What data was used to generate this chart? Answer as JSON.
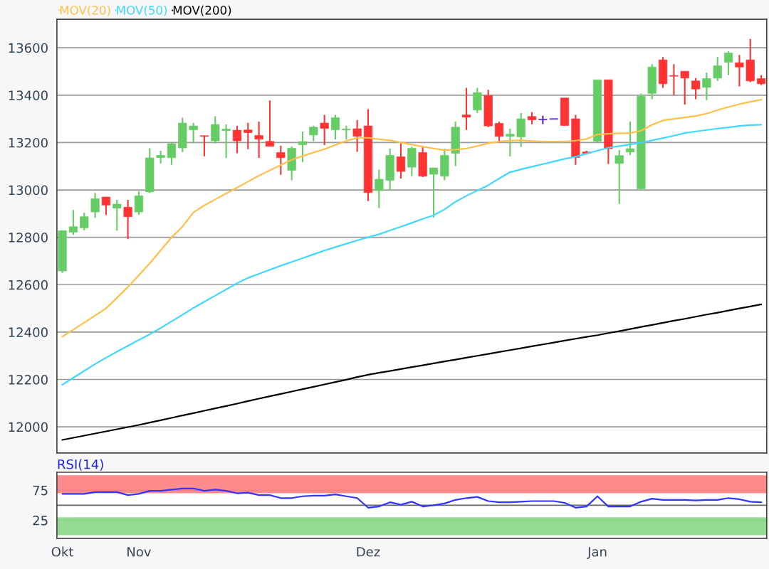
{
  "chart_data": [
    {
      "type": "candlestick",
      "tick_labels": "y",
      "grid": "y",
      "legend": "top left",
      "ylim": [
        11890,
        13720
      ],
      "yticks": [
        12000,
        12200,
        12400,
        12600,
        12800,
        13000,
        13200,
        13400,
        13600
      ],
      "categories": [
        null,
        null,
        null,
        null,
        null,
        null,
        null,
        null,
        null,
        null,
        null,
        null,
        null,
        null,
        null,
        null,
        null,
        null,
        null,
        null,
        null,
        null,
        null,
        null,
        null,
        null,
        null,
        null,
        null,
        null,
        null,
        null,
        null,
        null,
        null,
        null,
        null,
        null,
        null,
        null,
        null,
        null,
        null,
        null,
        null,
        null,
        null,
        null,
        null,
        null,
        null,
        null,
        null,
        null,
        null,
        null,
        null,
        null,
        null,
        null,
        null,
        null,
        null,
        null,
        null
      ],
      "ohlc": [
        [
          12658,
          12830,
          12650,
          12828
        ],
        [
          12822,
          12915,
          12810,
          12845
        ],
        [
          12840,
          12904,
          12830,
          12887
        ],
        [
          12907,
          12987,
          12882,
          12963
        ],
        [
          12970,
          12970,
          12894,
          12936
        ],
        [
          12923,
          12958,
          12828,
          12940
        ],
        [
          12927,
          12958,
          12792,
          12887
        ],
        [
          12907,
          12994,
          12894,
          12975
        ],
        [
          12992,
          13176,
          12987,
          13135
        ],
        [
          13137,
          13165,
          13112,
          13146
        ],
        [
          13136,
          13200,
          13106,
          13195
        ],
        [
          13177,
          13305,
          13160,
          13282
        ],
        [
          13254,
          13283,
          13197,
          13270
        ],
        [
          13229,
          13229,
          13142,
          13226
        ],
        [
          13207,
          13311,
          13196,
          13276
        ],
        [
          13250,
          13276,
          13135,
          13257
        ],
        [
          13252,
          13271,
          13155,
          13207
        ],
        [
          13253,
          13283,
          13172,
          13242
        ],
        [
          13230,
          13288,
          13135,
          13214
        ],
        [
          13205,
          13378,
          13184,
          13184
        ],
        [
          13158,
          13187,
          13064,
          13136
        ],
        [
          13083,
          13184,
          13041,
          13176
        ],
        [
          13191,
          13246,
          13118,
          13204
        ],
        [
          13232,
          13271,
          13206,
          13265
        ],
        [
          13282,
          13317,
          13189,
          13260
        ],
        [
          13254,
          13317,
          13213,
          13305
        ],
        [
          13253,
          13271,
          13213,
          13257
        ],
        [
          13258,
          13295,
          13161,
          13227
        ],
        [
          13270,
          13341,
          12953,
          12989
        ],
        [
          12997,
          13086,
          12923,
          13045
        ],
        [
          13041,
          13174,
          12997,
          13146
        ],
        [
          13140,
          13196,
          13048,
          13078
        ],
        [
          13096,
          13182,
          13058,
          13176
        ],
        [
          13158,
          13184,
          13054,
          13058
        ],
        [
          13066,
          13093,
          12884,
          13093
        ],
        [
          13058,
          13174,
          13041,
          13146
        ],
        [
          13155,
          13288,
          13101,
          13265
        ],
        [
          13317,
          13431,
          13253,
          13307
        ],
        [
          13337,
          13431,
          13324,
          13411
        ],
        [
          13399,
          13423,
          13265,
          13270
        ],
        [
          13281,
          13288,
          13206,
          13226
        ],
        [
          13226,
          13258,
          13141,
          13235
        ],
        [
          13224,
          13324,
          13182,
          13300
        ],
        [
          13310,
          13329,
          13278,
          13296
        ],
        [
          13296,
          13313,
          13278,
          13296
        ],
        [
          13298,
          13298,
          13298,
          13298
        ],
        [
          13388,
          13388,
          13272,
          13272
        ],
        [
          13300,
          13317,
          13106,
          13137
        ],
        [
          13160,
          13165,
          13155,
          13155
        ],
        [
          13206,
          13465,
          13199,
          13465
        ],
        [
          13465,
          13465,
          13110,
          13174
        ],
        [
          13112,
          13168,
          12941,
          13145
        ],
        [
          13160,
          13288,
          13147,
          13174
        ],
        [
          13005,
          13406,
          12999,
          13396
        ],
        [
          13408,
          13531,
          13383,
          13519
        ],
        [
          13549,
          13561,
          13431,
          13448
        ],
        [
          13482,
          13531,
          13401,
          13480
        ],
        [
          13501,
          13501,
          13360,
          13472
        ],
        [
          13460,
          13472,
          13383,
          13426
        ],
        [
          13433,
          13495,
          13379,
          13470
        ],
        [
          13472,
          13561,
          13460,
          13524
        ],
        [
          13539,
          13585,
          13485,
          13578
        ],
        [
          13537,
          13570,
          13437,
          13519
        ],
        [
          13549,
          13637,
          13455,
          13460
        ],
        [
          13470,
          13485,
          13442,
          13448
        ]
      ],
      "colors": [
        "#66cc66",
        "#66cc66",
        "#66cc66",
        "#66cc66",
        "#ff3333",
        "#66cc66",
        "#ff3333",
        "#66cc66",
        "#66cc66",
        "#66cc66",
        "#66cc66",
        "#66cc66",
        "#66cc66",
        "#ff3333",
        "#66cc66",
        "#66cc66",
        "#ff3333",
        "#ff3333",
        "#ff3333",
        "#ff3333",
        "#ff3333",
        "#66cc66",
        "#66cc66",
        "#66cc66",
        "#ff3333",
        "#66cc66",
        "#66cc66",
        "#ff3333",
        "#ff3333",
        "#66cc66",
        "#66cc66",
        "#ff3333",
        "#66cc66",
        "#ff3333",
        "#66cc66",
        "#66cc66",
        "#66cc66",
        "#ff3333",
        "#66cc66",
        "#ff3333",
        "#ff3333",
        "#66cc66",
        "#66cc66",
        "#ff3333",
        "#5522dd",
        "#5522dd",
        "#ff3333",
        "#ff3333",
        "#ff3333",
        "#66cc66",
        "#ff3333",
        "#66cc66",
        "#66cc66",
        "#66cc66",
        "#66cc66",
        "#ff3333",
        "#ff3333",
        "#ff3333",
        "#ff3333",
        "#66cc66",
        "#66cc66",
        "#66cc66",
        "#ff3333",
        "#ff3333",
        "#ff3333"
      ],
      "series": [
        {
          "type": "line",
          "name": "MOV(20)",
          "color": "#ffc04a",
          "values": [
            12381,
            12410,
            12440,
            12470,
            12500,
            12545,
            12590,
            12640,
            12690,
            12745,
            12800,
            12845,
            12905,
            12935,
            12960,
            12985,
            13010,
            13035,
            13060,
            13083,
            13105,
            13127,
            13143,
            13158,
            13172,
            13190,
            13207,
            13220,
            13220,
            13214,
            13209,
            13200,
            13191,
            13183,
            13175,
            13168,
            13170,
            13175,
            13185,
            13197,
            13204,
            13208,
            13210,
            13206,
            13204,
            13204,
            13204,
            13208,
            13215,
            13234,
            13237,
            13239,
            13240,
            13250,
            13275,
            13293,
            13300,
            13306,
            13312,
            13322,
            13337,
            13350,
            13362,
            13372,
            13381
          ]
        },
        {
          "type": "line",
          "name": "MOV(50)",
          "color": "#40d8ff",
          "values": [
            12178,
            12207,
            12236,
            12265,
            12292,
            12317,
            12342,
            12367,
            12391,
            12417,
            12445,
            12473,
            12502,
            12528,
            12554,
            12580,
            12606,
            12629,
            12646,
            12663,
            12680,
            12696,
            12712,
            12728,
            12744,
            12759,
            12773,
            12787,
            12800,
            12813,
            12829,
            12845,
            12861,
            12878,
            12893,
            12918,
            12950,
            12975,
            12998,
            13020,
            13048,
            13075,
            13087,
            13098,
            13109,
            13120,
            13131,
            13140,
            13153,
            13166,
            13178,
            13185,
            13192,
            13199,
            13209,
            13219,
            13229,
            13240,
            13247,
            13253,
            13259,
            13264,
            13270,
            13274,
            13275
          ]
        },
        {
          "type": "line",
          "name": "MOV(200)",
          "color": "#000000",
          "values": [
            11945,
            11954,
            11963,
            11972,
            11981,
            11990,
            11999,
            12008,
            12018,
            12028,
            12038,
            12048,
            12058,
            12068,
            12078,
            12088,
            12098,
            12109,
            12119,
            12129,
            12139,
            12149,
            12159,
            12169,
            12179,
            12189,
            12199,
            12210,
            12220,
            12228,
            12236,
            12244,
            12252,
            12260,
            12268,
            12276,
            12284,
            12292,
            12300,
            12308,
            12316,
            12324,
            12332,
            12340,
            12348,
            12356,
            12364,
            12372,
            12380,
            12387,
            12396,
            12404,
            12413,
            12422,
            12430,
            12439,
            12448,
            12456,
            12465,
            12474,
            12482,
            12491,
            12500,
            12508,
            12517
          ]
        }
      ]
    },
    {
      "type": "line",
      "title": "RSI(14)",
      "grid": "y",
      "ylim": [
        -5,
        105
      ],
      "yticks": [
        25,
        75
      ],
      "categories": [
        "Okt",
        null,
        null,
        null,
        null,
        null,
        null,
        "Nov",
        null,
        null,
        null,
        null,
        null,
        null,
        null,
        null,
        null,
        null,
        null,
        null,
        null,
        null,
        null,
        null,
        null,
        null,
        null,
        null,
        "Dez",
        null,
        null,
        null,
        null,
        null,
        null,
        null,
        null,
        null,
        null,
        null,
        null,
        null,
        null,
        null,
        null,
        null,
        null,
        null,
        null,
        "Jan",
        null,
        null,
        null,
        null,
        null,
        null,
        null,
        null,
        null,
        null,
        null,
        null,
        null,
        null,
        null
      ],
      "ref_lines": [
        {
          "axis": "y",
          "value": 50,
          "color": "#666666"
        }
      ],
      "bands": [
        {
          "axis": "y",
          "from": 70,
          "to": 100,
          "color": "#ff8080"
        },
        {
          "axis": "y",
          "from": 0,
          "to": 30,
          "color": "#88d888"
        }
      ],
      "series": [
        {
          "color": "#3333ff",
          "values": [
            69,
            69,
            69,
            72,
            72,
            72,
            67,
            69,
            74,
            74,
            76,
            78,
            78,
            74,
            76,
            74,
            70,
            71,
            67,
            67,
            62,
            62,
            65,
            66,
            66,
            68,
            65,
            62,
            46,
            48,
            55,
            51,
            56,
            48,
            50,
            53,
            59,
            62,
            64,
            57,
            55,
            55,
            56,
            57,
            57,
            57,
            54,
            46,
            48,
            65,
            48,
            48,
            48,
            56,
            61,
            59,
            59,
            59,
            58,
            59,
            59,
            62,
            60,
            56,
            55
          ]
        }
      ]
    }
  ]
}
